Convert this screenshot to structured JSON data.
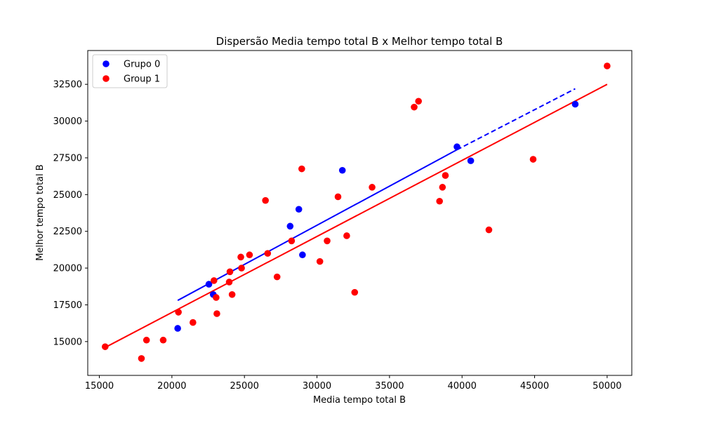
{
  "chart_data": {
    "type": "scatter",
    "title": "Dispersão Media tempo total B x Melhor tempo total B",
    "xlabel": "Media tempo total B",
    "ylabel": "Melhor tempo total B",
    "xlim": [
      14200,
      51700
    ],
    "ylim": [
      12700,
      34800
    ],
    "xticks": [
      15000,
      20000,
      25000,
      30000,
      35000,
      40000,
      45000,
      50000
    ],
    "yticks": [
      15000,
      17500,
      20000,
      22500,
      25000,
      27500,
      30000,
      32500
    ],
    "grid": false,
    "legend_position": "top-left",
    "series": [
      {
        "name": "Grupo 0",
        "color": "#0000ff",
        "points": [
          [
            20400,
            15900
          ],
          [
            22550,
            18900
          ],
          [
            22850,
            18200
          ],
          [
            28150,
            22850
          ],
          [
            28750,
            24000
          ],
          [
            29000,
            20900
          ],
          [
            31750,
            26650
          ],
          [
            39650,
            28250
          ],
          [
            40600,
            27300
          ],
          [
            47800,
            31150
          ]
        ],
        "fit": {
          "x_start": 20400,
          "x_end": 39650,
          "y_start": 17800,
          "y_end": 28050,
          "extension_x_end": 47800,
          "extension_y_end": 32200,
          "extension_style": "dashed"
        }
      },
      {
        "name": "Group 1",
        "color": "#ff0000",
        "points": [
          [
            15400,
            14650
          ],
          [
            17900,
            13850
          ],
          [
            18250,
            15100
          ],
          [
            19400,
            15100
          ],
          [
            20450,
            17000
          ],
          [
            21450,
            16300
          ],
          [
            22900,
            19150
          ],
          [
            23050,
            18000
          ],
          [
            23100,
            16900
          ],
          [
            23950,
            19050
          ],
          [
            24000,
            19750
          ],
          [
            24150,
            18200
          ],
          [
            24750,
            20750
          ],
          [
            24800,
            20000
          ],
          [
            25350,
            20900
          ],
          [
            26450,
            24600
          ],
          [
            26600,
            21000
          ],
          [
            27250,
            19400
          ],
          [
            28250,
            21850
          ],
          [
            28950,
            26750
          ],
          [
            30200,
            20450
          ],
          [
            30700,
            21850
          ],
          [
            31450,
            24850
          ],
          [
            32050,
            22200
          ],
          [
            32600,
            18350
          ],
          [
            33800,
            25500
          ],
          [
            36700,
            30950
          ],
          [
            37000,
            31350
          ],
          [
            38450,
            24550
          ],
          [
            38650,
            25500
          ],
          [
            38850,
            26300
          ],
          [
            41850,
            22600
          ],
          [
            44900,
            27400
          ],
          [
            50000,
            33750
          ]
        ],
        "fit": {
          "x_start": 15400,
          "x_end": 50000,
          "y_start": 14600,
          "y_end": 32500
        }
      }
    ]
  }
}
